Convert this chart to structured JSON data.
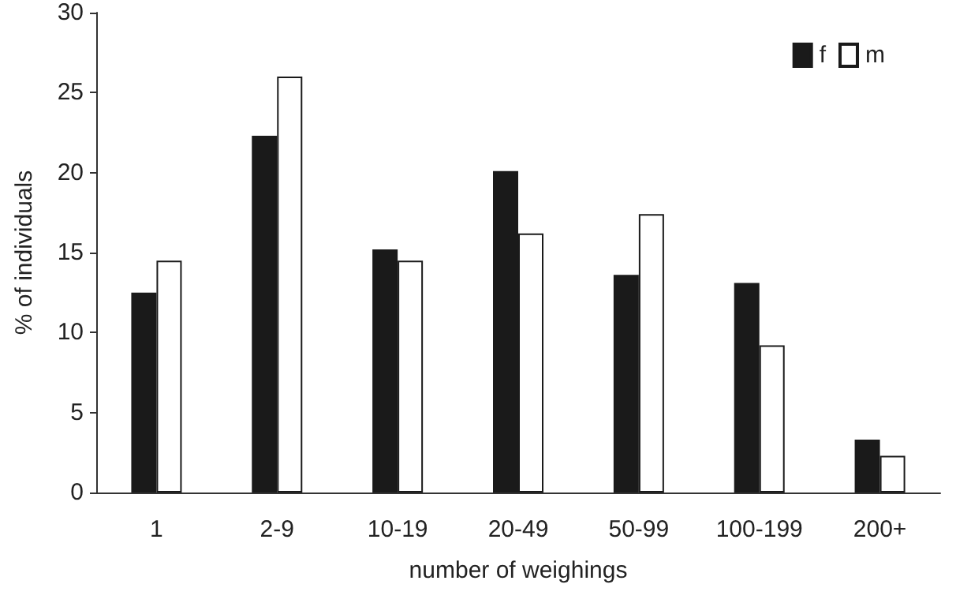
{
  "chart_data": {
    "type": "bar",
    "xlabel": "number of weighings",
    "ylabel": "% of individuals",
    "categories": [
      "1",
      "2-9",
      "10-19",
      "20-49",
      "50-99",
      "100-199",
      "200+"
    ],
    "series": [
      {
        "name": "f",
        "color": "#1a1a1a",
        "values": [
          12.5,
          22.3,
          15.2,
          20.1,
          13.6,
          13.1,
          3.3
        ]
      },
      {
        "name": "m",
        "color": "#ffffff",
        "values": [
          14.5,
          26,
          14.5,
          16.2,
          17.4,
          9.2,
          2.3
        ]
      }
    ],
    "ylim": [
      0,
      30
    ],
    "yticks": [
      0,
      5,
      10,
      15,
      20,
      25,
      30
    ],
    "grid": false,
    "legend": "top right"
  }
}
